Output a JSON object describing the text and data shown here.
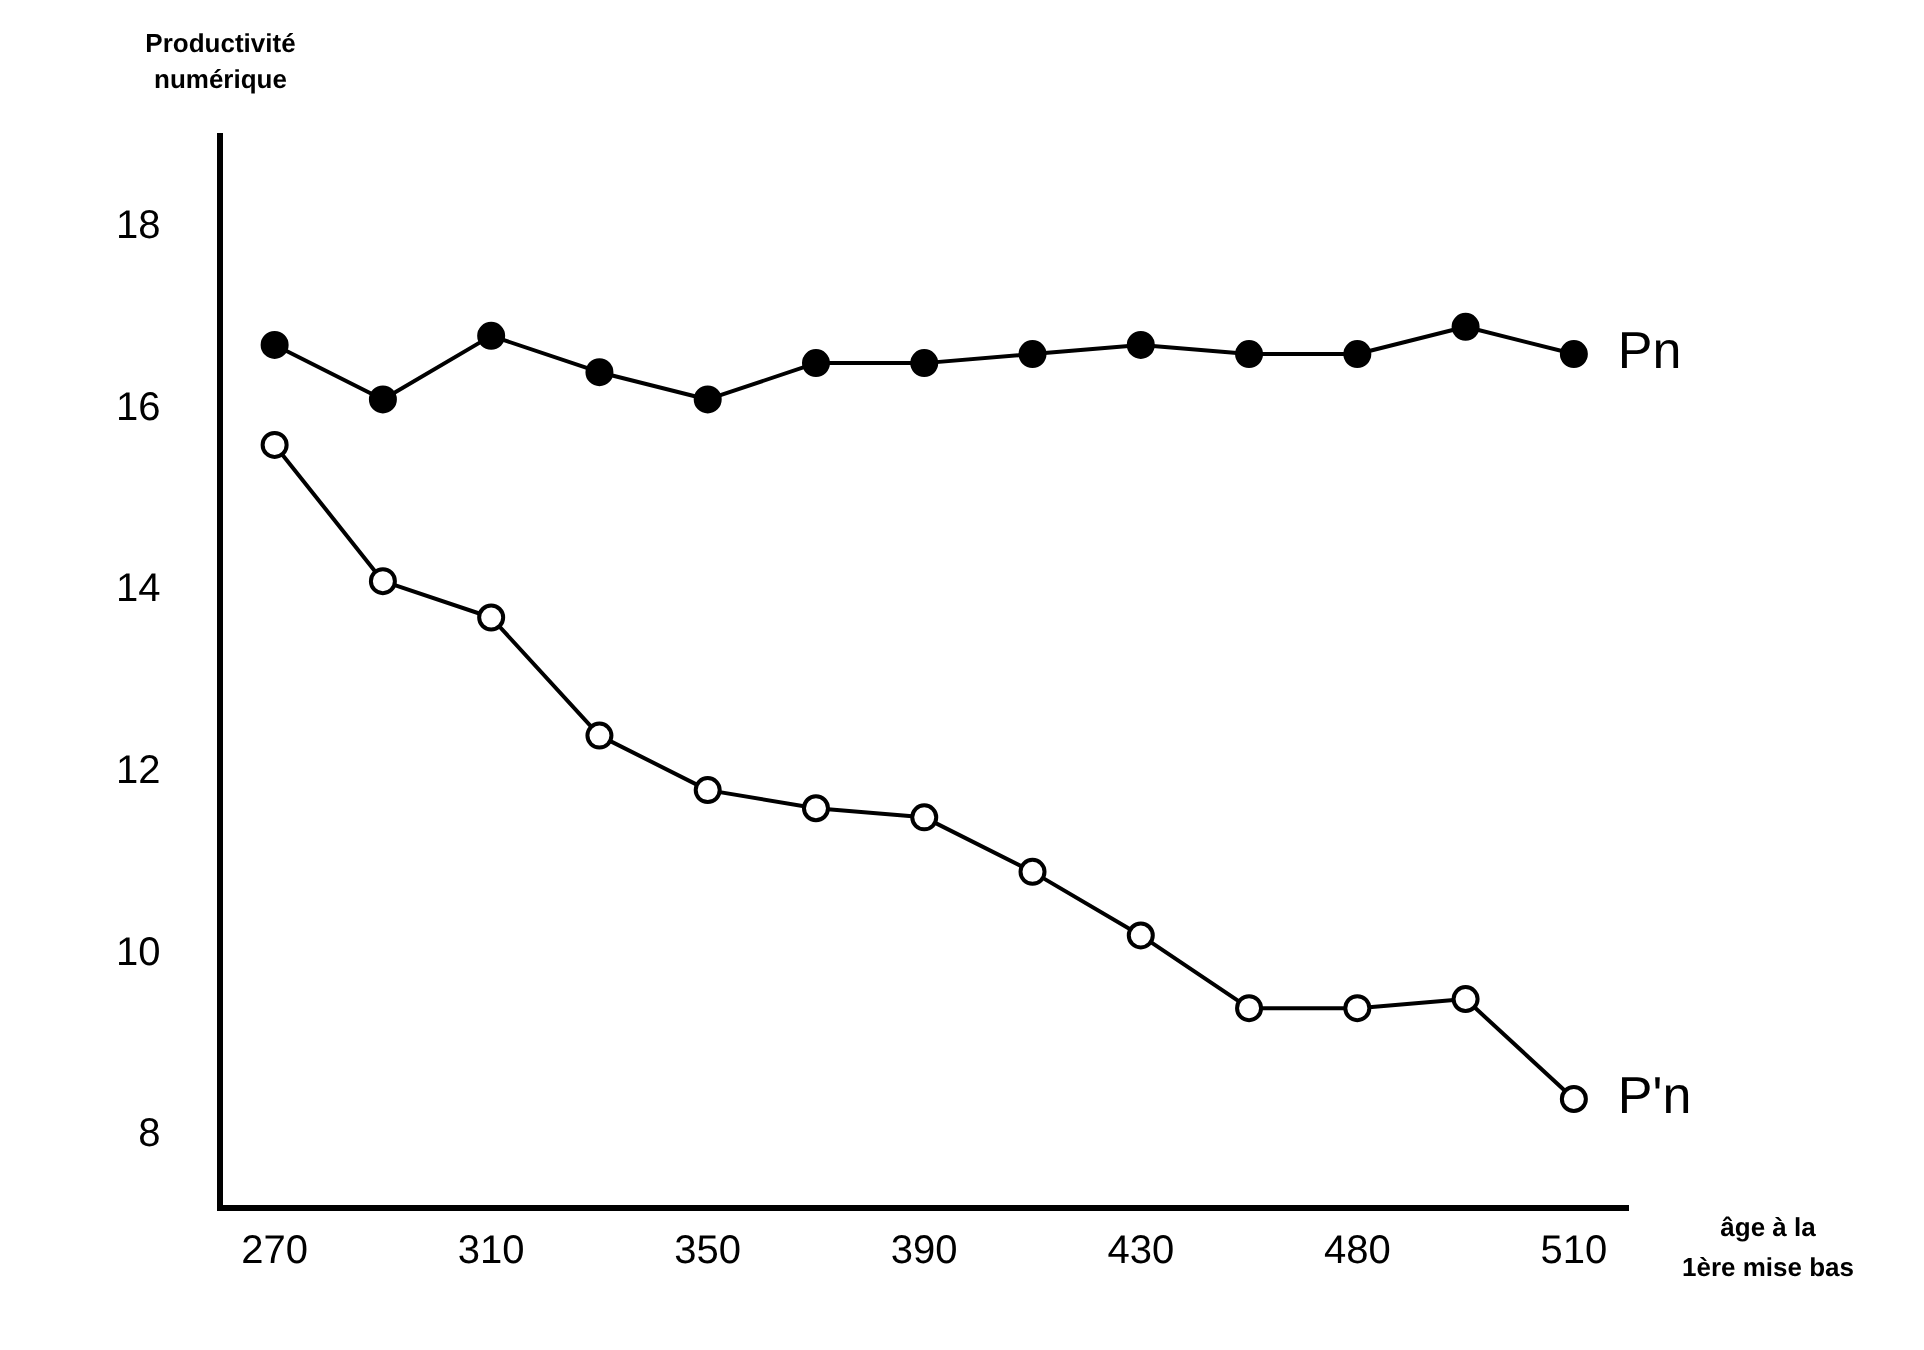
{
  "chart_data": {
    "type": "line",
    "xlabel": "âge à la 1ère mise bas",
    "ylabel": "Productivité numérique",
    "categories": [
      "270",
      null,
      "310",
      null,
      "350",
      null,
      "390",
      null,
      "430",
      null,
      "480",
      null,
      "510"
    ],
    "series": [
      {
        "name": "Pn",
        "color": "#000000",
        "values": [
          16.7,
          16.1,
          16.8,
          16.4,
          16.1,
          16.5,
          16.5,
          16.6,
          16.7,
          16.6,
          16.6,
          16.9,
          16.6
        ]
      },
      {
        "name": "P'n",
        "color": "#000000",
        "values": [
          15.6,
          14.1,
          13.7,
          12.4,
          11.8,
          11.6,
          11.5,
          10.9,
          10.2,
          9.4,
          9.4,
          9.5,
          8.4
        ]
      }
    ],
    "ylim": [
      7.2,
      19
    ],
    "yticks": [
      8,
      10,
      12,
      14,
      16,
      18
    ],
    "grid": false,
    "legend": false,
    "marker": "circle",
    "line_style": "solid"
  }
}
